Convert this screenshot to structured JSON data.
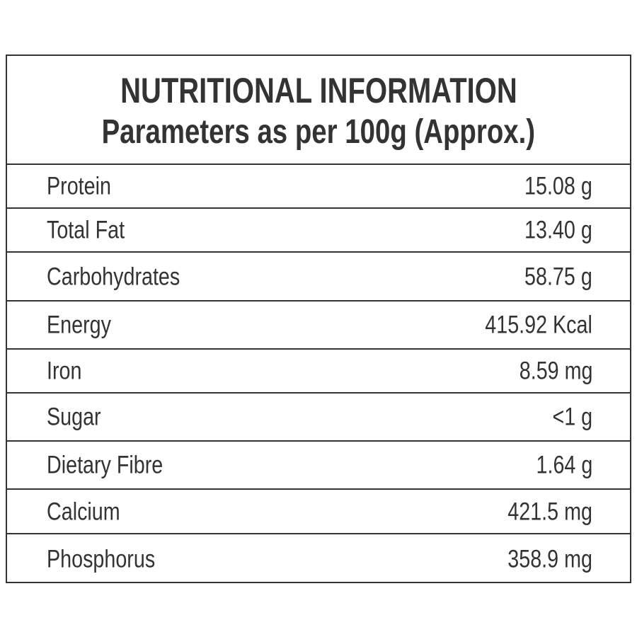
{
  "title": "NUTRITIONAL INFORMATION",
  "subtitle": "Parameters as per 100g (Approx.)",
  "rows": [
    {
      "label": "Protein",
      "value": "15.08 g"
    },
    {
      "label": "Total Fat",
      "value": "13.40 g"
    },
    {
      "label": "Carbohydrates",
      "value": "58.75 g"
    },
    {
      "label": "Energy",
      "value": "415.92 Kcal"
    },
    {
      "label": "Iron",
      "value": "8.59 mg"
    },
    {
      "label": "Sugar",
      "value": "<1 g"
    },
    {
      "label": "Dietary Fibre",
      "value": "1.64 g"
    },
    {
      "label": "Calcium",
      "value": "421.5 mg"
    },
    {
      "label": "Phosphorus",
      "value": "358.9 mg"
    }
  ]
}
